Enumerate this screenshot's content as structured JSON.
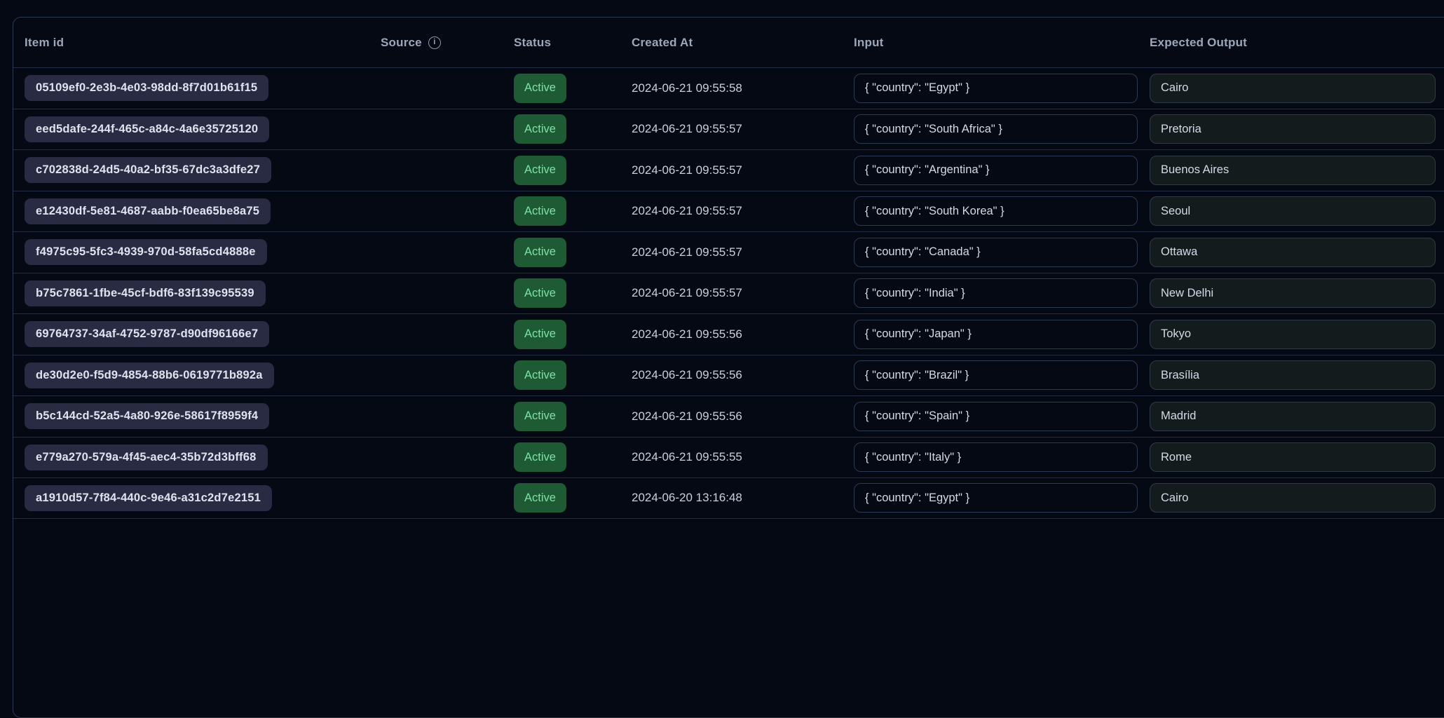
{
  "table": {
    "columns": [
      {
        "key": "item_id",
        "label": "Item id"
      },
      {
        "key": "source",
        "label": "Source",
        "info_icon": "info-icon"
      },
      {
        "key": "status",
        "label": "Status"
      },
      {
        "key": "created_at",
        "label": "Created At"
      },
      {
        "key": "input",
        "label": "Input"
      },
      {
        "key": "expected_output",
        "label": "Expected Output"
      }
    ],
    "rows": [
      {
        "item_id": "05109ef0-2e3b-4e03-98dd-8f7d01b61f15",
        "source": "",
        "status": "Active",
        "created_at": "2024-06-21 09:55:58",
        "input": "{ \"country\": \"Egypt\" }",
        "expected_output": "Cairo"
      },
      {
        "item_id": "eed5dafe-244f-465c-a84c-4a6e35725120",
        "source": "",
        "status": "Active",
        "created_at": "2024-06-21 09:55:57",
        "input": "{ \"country\": \"South Africa\" }",
        "expected_output": "Pretoria"
      },
      {
        "item_id": "c702838d-24d5-40a2-bf35-67dc3a3dfe27",
        "source": "",
        "status": "Active",
        "created_at": "2024-06-21 09:55:57",
        "input": "{ \"country\": \"Argentina\" }",
        "expected_output": "Buenos Aires"
      },
      {
        "item_id": "e12430df-5e81-4687-aabb-f0ea65be8a75",
        "source": "",
        "status": "Active",
        "created_at": "2024-06-21 09:55:57",
        "input": "{ \"country\": \"South Korea\" }",
        "expected_output": "Seoul"
      },
      {
        "item_id": "f4975c95-5fc3-4939-970d-58fa5cd4888e",
        "source": "",
        "status": "Active",
        "created_at": "2024-06-21 09:55:57",
        "input": "{ \"country\": \"Canada\" }",
        "expected_output": "Ottawa"
      },
      {
        "item_id": "b75c7861-1fbe-45cf-bdf6-83f139c95539",
        "source": "",
        "status": "Active",
        "created_at": "2024-06-21 09:55:57",
        "input": "{ \"country\": \"India\" }",
        "expected_output": "New Delhi"
      },
      {
        "item_id": "69764737-34af-4752-9787-d90df96166e7",
        "source": "",
        "status": "Active",
        "created_at": "2024-06-21 09:55:56",
        "input": "{ \"country\": \"Japan\" }",
        "expected_output": "Tokyo"
      },
      {
        "item_id": "de30d2e0-f5d9-4854-88b6-0619771b892a",
        "source": "",
        "status": "Active",
        "created_at": "2024-06-21 09:55:56",
        "input": "{ \"country\": \"Brazil\" }",
        "expected_output": "Brasília"
      },
      {
        "item_id": "b5c144cd-52a5-4a80-926e-58617f8959f4",
        "source": "",
        "status": "Active",
        "created_at": "2024-06-21 09:55:56",
        "input": "{ \"country\": \"Spain\" }",
        "expected_output": "Madrid"
      },
      {
        "item_id": "e779a270-579a-4f45-aec4-35b72d3bff68",
        "source": "",
        "status": "Active",
        "created_at": "2024-06-21 09:55:55",
        "input": "{ \"country\": \"Italy\" }",
        "expected_output": "Rome"
      },
      {
        "item_id": "a1910d57-7f84-440c-9e46-a31c2d7e2151",
        "source": "",
        "status": "Active",
        "created_at": "2024-06-20 13:16:48",
        "input": "{ \"country\": \"Egypt\" }",
        "expected_output": "Cairo"
      }
    ]
  },
  "colors": {
    "page_background": "#050914",
    "card_border": "#2d3857",
    "row_separator": "#242d46",
    "header_text": "#9ca8b9",
    "item_id_pill_bg": "#282b42",
    "item_id_pill_text": "#dee3f0",
    "status_active_bg": "#1e5a34",
    "status_active_text": "#7de2a5",
    "value_text": "#d4dae6",
    "input_box_border": "#2d3a55",
    "expected_box_border": "#2f3c46",
    "expected_box_bg": "#141b1d"
  }
}
